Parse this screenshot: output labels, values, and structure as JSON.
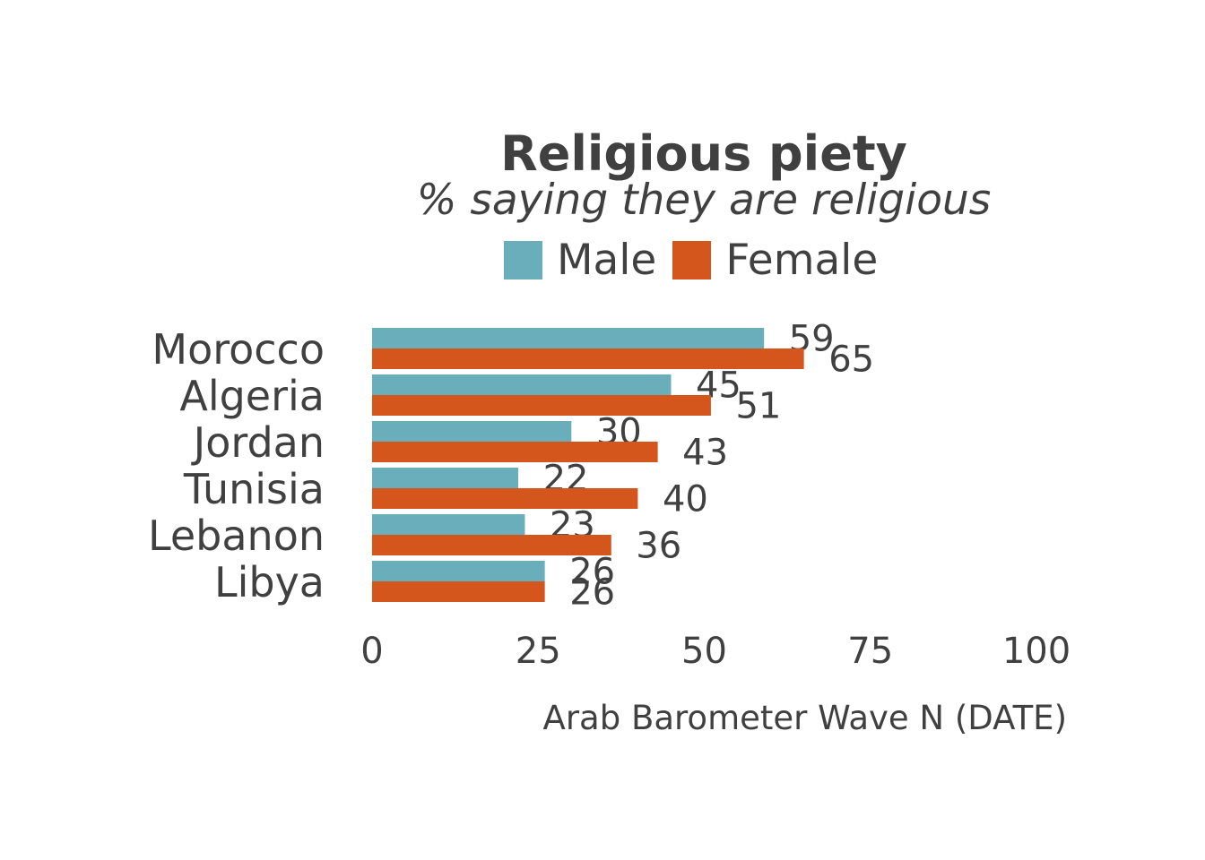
{
  "chart_data": {
    "type": "bar",
    "orientation": "horizontal",
    "title": "Religious piety",
    "subtitle": "% saying they are religious",
    "caption": "Arab Barometer Wave N (DATE)",
    "categories": [
      "Morocco",
      "Algeria",
      "Jordan",
      "Tunisia",
      "Lebanon",
      "Libya"
    ],
    "series": [
      {
        "name": "Male",
        "color": "#6aaebc",
        "values": [
          59,
          45,
          30,
          22,
          23,
          26
        ]
      },
      {
        "name": "Female",
        "color": "#d5561d",
        "values": [
          65,
          51,
          43,
          40,
          36,
          26
        ]
      }
    ],
    "xlim": [
      0,
      100
    ],
    "xticks": [
      0,
      25,
      50,
      75,
      100
    ],
    "grid": false,
    "legend": "top"
  }
}
